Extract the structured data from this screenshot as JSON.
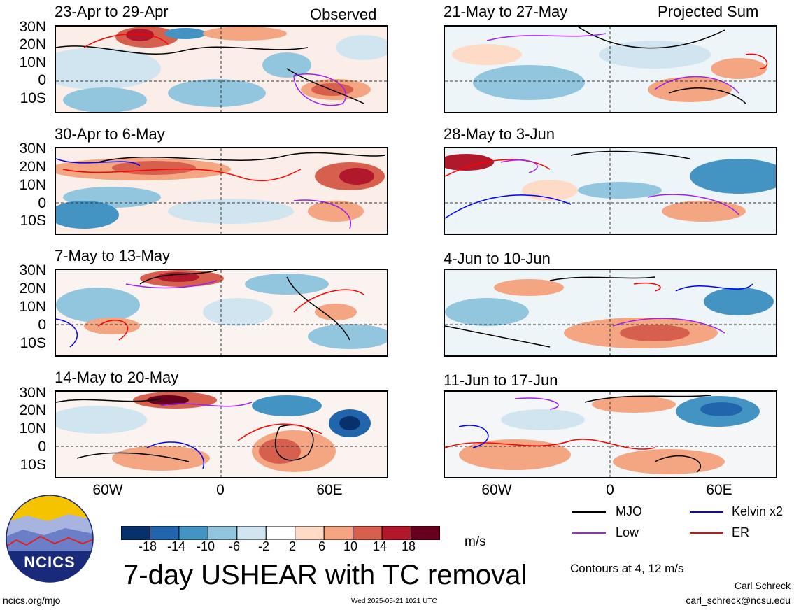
{
  "header": {
    "observed_label": "Observed",
    "projected_label": "Projected Sum"
  },
  "panels_left": [
    {
      "title": "23-Apr to 29-Apr"
    },
    {
      "title": "30-Apr to 6-May"
    },
    {
      "title": "7-May to 13-May"
    },
    {
      "title": "14-May to 20-May"
    }
  ],
  "panels_right": [
    {
      "title": "21-May to 27-May"
    },
    {
      "title": "28-May to 3-Jun"
    },
    {
      "title": "4-Jun to 10-Jun"
    },
    {
      "title": "11-Jun to 17-Jun"
    }
  ],
  "axes": {
    "lat_ticks": [
      "30N",
      "20N",
      "10N",
      "0",
      "10S"
    ],
    "lon_ticks": [
      "60W",
      "0",
      "60E"
    ]
  },
  "colorbar": {
    "ticks": [
      "-18",
      "-14",
      "-10",
      "-6",
      "-2",
      "2",
      "6",
      "10",
      "14",
      "18"
    ],
    "colors": [
      "#08306b",
      "#2166ac",
      "#4393c3",
      "#92c5de",
      "#d1e5f0",
      "#ffffff",
      "#fddbc7",
      "#f4a582",
      "#d6604d",
      "#b2182b",
      "#67001f"
    ],
    "units": "m/s"
  },
  "legend": {
    "items": [
      {
        "label": "MJO",
        "color": "#000000"
      },
      {
        "label": "Kelvin x2",
        "color": "#0000ff"
      },
      {
        "label": "Low",
        "color": "#a020f0"
      },
      {
        "label": "ER",
        "color": "#ff0000"
      }
    ],
    "contours_note": "Contours at 4, 12 m/s"
  },
  "footer": {
    "logo_text": "NCICS",
    "main_title": "7-day USHEAR with TC removal",
    "url": "ncics.org/mjo",
    "timestamp": "Wed 2025-05-21 1021 UTC",
    "author": "Carl Schreck",
    "email": "carl_schreck@ncsu.edu"
  }
}
